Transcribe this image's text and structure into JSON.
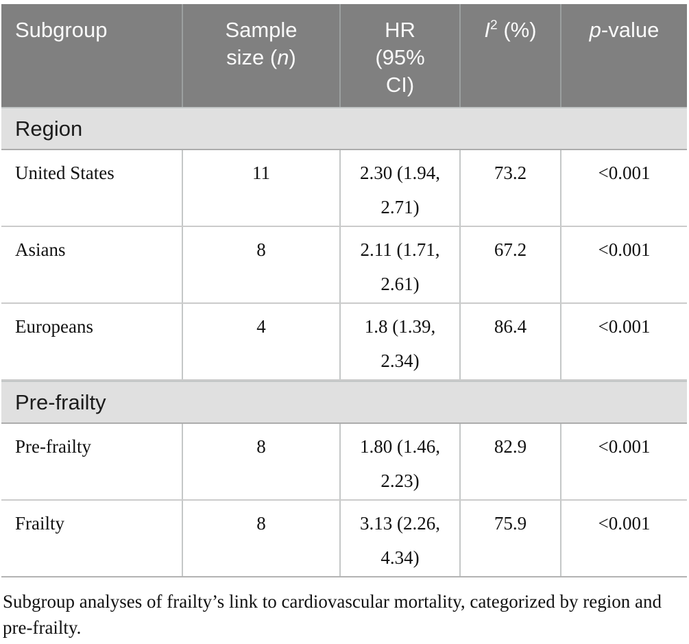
{
  "table": {
    "header": {
      "subgroup": "Subgroup",
      "sample_line1": "Sample",
      "sample_line2_pre": "size (",
      "sample_n": "n",
      "sample_line2_post": ")",
      "hr_line1": "HR",
      "hr_line2": "(95%",
      "hr_line3": "CI)",
      "i2_letter": "I",
      "i2_sup": "2",
      "i2_rest": " (%)",
      "p_letter": "p",
      "p_rest": "-value"
    },
    "sections": [
      {
        "label": "Region",
        "rows": [
          {
            "subgroup": "United States",
            "n": "11",
            "hr": "2.30 (1.94, 2.71)",
            "i2": "73.2",
            "p": "<0.001"
          },
          {
            "subgroup": "Asians",
            "n": "8",
            "hr": "2.11 (1.71, 2.61)",
            "i2": "67.2",
            "p": "<0.001"
          },
          {
            "subgroup": "Europeans",
            "n": "4",
            "hr": "1.8 (1.39, 2.34)",
            "i2": "86.4",
            "p": "<0.001"
          }
        ]
      },
      {
        "label": "Pre-frailty",
        "rows": [
          {
            "subgroup": "Pre-frailty",
            "n": "8",
            "hr": "1.80 (1.46, 2.23)",
            "i2": "82.9",
            "p": "<0.001"
          },
          {
            "subgroup": "Frailty",
            "n": "8",
            "hr": "3.13 (2.26, 4.34)",
            "i2": "75.9",
            "p": "<0.001"
          }
        ]
      }
    ],
    "caption_lines": [
      "Subgroup analyses of frailty’s link to cardiovascular mortality, categorized by region and",
      "pre-frailty."
    ],
    "colors": {
      "header_bg": "#808080",
      "header_text": "#fafafa",
      "section_bg": "#e0e0e0",
      "body_text": "#111111",
      "border": "#c4c7c7"
    }
  }
}
